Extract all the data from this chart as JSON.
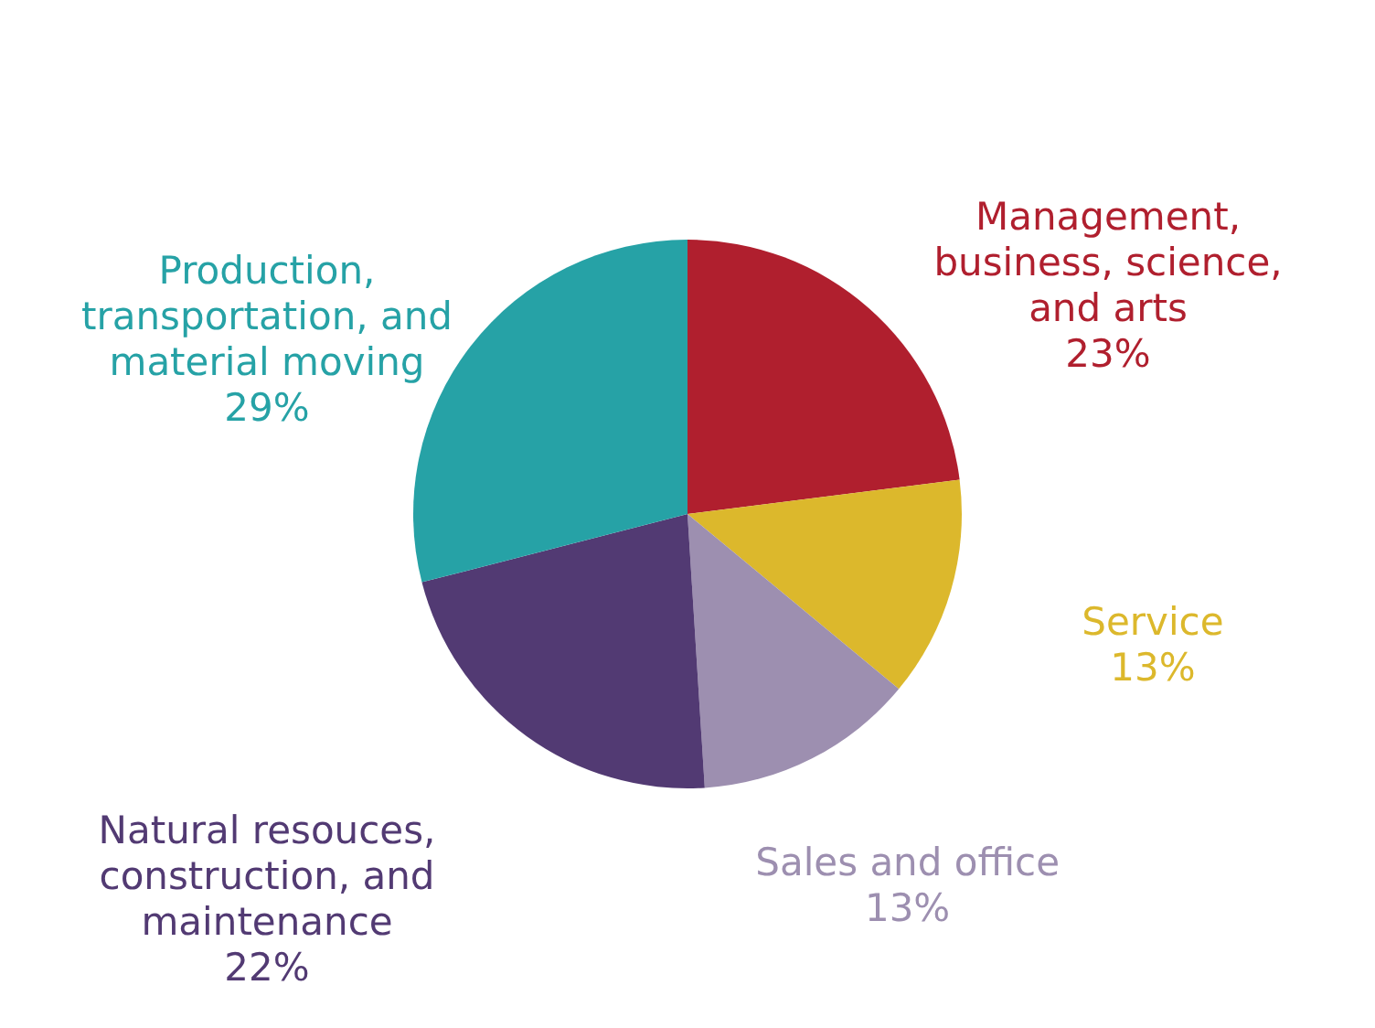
{
  "chart_data": {
    "type": "pie",
    "categories": [
      "Management, business, science, and arts",
      "Service",
      "Sales and office",
      "Natural resouces, construction, and maintenance",
      "Production, transportation, and material moving"
    ],
    "values": [
      23,
      13,
      13,
      22,
      29
    ],
    "colors": [
      "#b01f2e",
      "#dcb82c",
      "#9d8fb0",
      "#523a73",
      "#26a2a6"
    ],
    "value_labels": [
      "23%",
      "13%",
      "13%",
      "22%",
      "29%"
    ]
  }
}
